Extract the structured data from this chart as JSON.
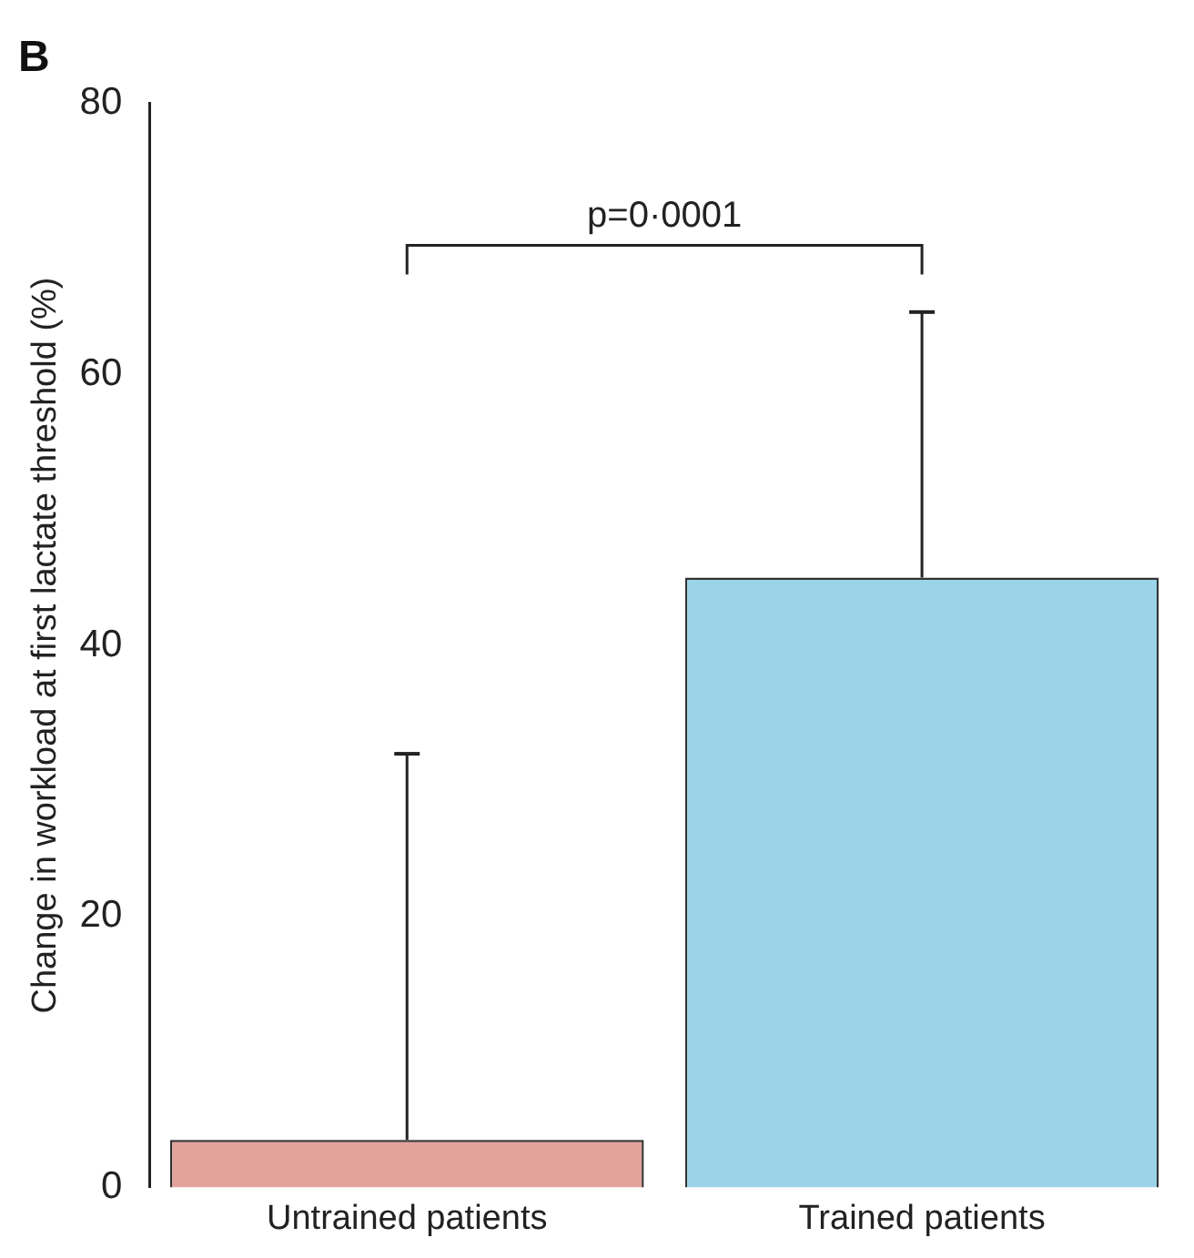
{
  "chart_data": {
    "type": "bar",
    "title": "B",
    "ylabel": "Change in workload at first lactate threshold (%)",
    "categories": [
      "Untrained patients",
      "Trained patients"
    ],
    "values": [
      3.5,
      45
    ],
    "colors": [
      "#e3a39c",
      "#9bd4e8"
    ],
    "errors": [
      [
        3.5,
        32
      ],
      [
        45,
        64.6
      ]
    ],
    "ylim": [
      0,
      80
    ],
    "yticks": [
      0,
      20,
      40,
      60,
      80
    ],
    "grid": false,
    "annotations": [
      {
        "text": "p=0·0001"
      }
    ]
  }
}
